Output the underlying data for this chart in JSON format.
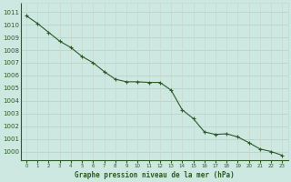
{
  "x": [
    0,
    1,
    2,
    3,
    4,
    5,
    6,
    7,
    8,
    9,
    10,
    11,
    12,
    13,
    14,
    15,
    16,
    17,
    18,
    19,
    20,
    21,
    22,
    23
  ],
  "y": [
    1010.7,
    1010.1,
    1009.4,
    1008.7,
    1008.2,
    1007.5,
    1007.0,
    1006.3,
    1005.7,
    1005.5,
    1005.5,
    1005.45,
    1005.45,
    1004.85,
    1003.3,
    1002.6,
    1001.55,
    1001.35,
    1001.4,
    1001.15,
    1000.7,
    1000.2,
    1000.0,
    999.7
  ],
  "line_color": "#2d5a27",
  "marker_color": "#2d5a27",
  "bg_color": "#cce8e0",
  "grid_color_h": "#e8b8b8",
  "grid_color_v": "#c8d8d0",
  "ylabel_ticks": [
    1000,
    1001,
    1002,
    1003,
    1004,
    1005,
    1006,
    1007,
    1008,
    1009,
    1010,
    1011
  ],
  "xlabel_label": "Graphe pression niveau de la mer (hPa)",
  "ylim": [
    999.3,
    1011.7
  ],
  "xlim": [
    -0.5,
    23.5
  ],
  "tick_color": "#2d5a27",
  "label_color": "#2d5a27"
}
